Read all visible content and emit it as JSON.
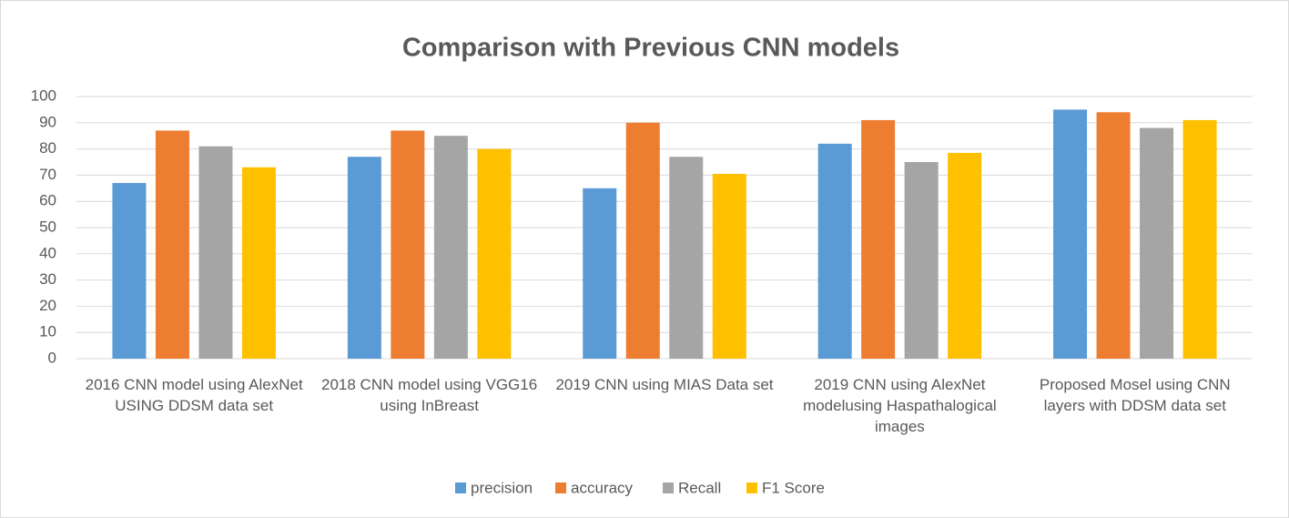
{
  "chart_data": {
    "type": "bar",
    "title": "Comparison with Previous CNN models",
    "categories": [
      "2016 CNN model using AlexNet USING DDSM data set",
      "2018 CNN model using VGG16  using InBreast",
      "2019  CNN using MIAS Data set",
      "2019 CNN using AlexNet modelusing Haspathalogical images",
      "Proposed Mosel using CNN layers with DDSM data set"
    ],
    "series": [
      {
        "name": "precision",
        "color": "#5b9bd5",
        "values": [
          67,
          77,
          65,
          82,
          95
        ]
      },
      {
        "name": "accuracy",
        "color": "#ed7d31",
        "values": [
          87,
          87,
          90,
          91,
          94
        ]
      },
      {
        "name": "Recall",
        "color": "#a5a5a5",
        "values": [
          81,
          85,
          77,
          75,
          88
        ]
      },
      {
        "name": "F1 Score",
        "color": "#ffc000",
        "values": [
          73,
          80,
          70.5,
          78.5,
          91
        ]
      }
    ],
    "ylim": [
      0,
      100
    ],
    "yticks": [
      0,
      10,
      20,
      30,
      40,
      50,
      60,
      70,
      80,
      90,
      100
    ],
    "grid": true,
    "legend": "bottom"
  }
}
